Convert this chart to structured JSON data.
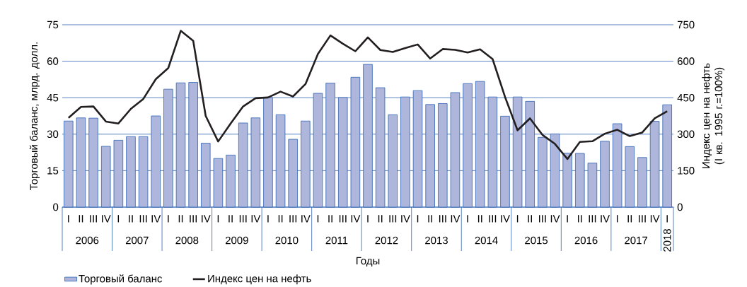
{
  "chart_data": {
    "type": "bar",
    "xlabel": "Годы",
    "ylabel": "Торговый баланс, млрд. долл.",
    "y2label": "Индекс цен на нефть (I кв. 1995 г.=100%)",
    "categories": [
      "I",
      "II",
      "III",
      "IV",
      "I",
      "II",
      "III",
      "IV",
      "I",
      "II",
      "III",
      "IV",
      "I",
      "II",
      "III",
      "IV",
      "I",
      "II",
      "III",
      "IV",
      "I",
      "II",
      "III",
      "IV",
      "I",
      "II",
      "III",
      "IV",
      "I",
      "II",
      "III",
      "IV",
      "I",
      "II",
      "III",
      "IV",
      "I",
      "II",
      "III",
      "IV",
      "I",
      "II",
      "III",
      "IV",
      "I",
      "II",
      "III",
      "IV",
      "I"
    ],
    "series": [
      {
        "name": "Торговый баланс",
        "color": "#aeb6dc",
        "values": [
          35.4,
          36.7,
          36.6,
          25.0,
          27.5,
          29.0,
          29.0,
          37.5,
          48.5,
          51.1,
          51.3,
          26.3,
          20.0,
          21.4,
          34.6,
          36.7,
          45.1,
          38.0,
          27.9,
          35.4,
          46.8,
          51.0,
          45.1,
          53.4,
          58.7,
          49.1,
          38.0,
          45.3,
          47.9,
          42.2,
          42.6,
          47.1,
          50.8,
          51.7,
          45.3,
          37.4,
          45.3,
          43.5,
          28.7,
          30.1,
          22.2,
          22.1,
          18.1,
          27.1,
          34.3,
          24.9,
          20.4,
          35.3,
          42.1
        ]
      },
      {
        "name": "Индекс цен на нефть",
        "type": "line",
        "axis": "y2",
        "color": "#231f20",
        "values": [
          367,
          412,
          414,
          352,
          344,
          404,
          445,
          526,
          572,
          725,
          684,
          375,
          270,
          344,
          414,
          448,
          451,
          475,
          455,
          506,
          630,
          706,
          672,
          641,
          698,
          646,
          638,
          654,
          669,
          611,
          650,
          647,
          636,
          649,
          609,
          453,
          316,
          365,
          297,
          260,
          198,
          268,
          271,
          302,
          318,
          292,
          307,
          365,
          394
        ]
      }
    ],
    "ylim": [
      0,
      75
    ],
    "yticks": [
      0,
      15,
      30,
      45,
      60,
      75
    ],
    "y2lim": [
      0,
      750
    ],
    "y2ticks": [
      0,
      150,
      300,
      450,
      600,
      750
    ],
    "grid": "y",
    "legend": "bottom",
    "annotations": [
      "2006",
      "2007",
      "2008",
      "2009",
      "2010",
      "2011",
      "2012",
      "2013",
      "2014",
      "2015",
      "2016",
      "2017",
      "2018"
    ]
  }
}
